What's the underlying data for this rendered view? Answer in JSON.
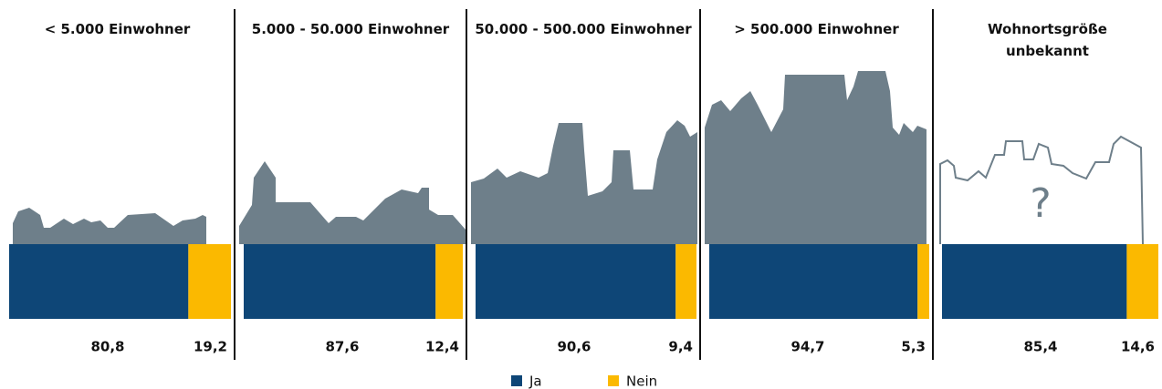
{
  "chart_data": {
    "type": "bar",
    "stacked": true,
    "orientation": "horizontal",
    "categories": [
      "< 5.000 Einwohner",
      "5.000 - 50.000 Einwohner",
      "50.000 - 500.000 Einwohner",
      "> 500.000 Einwohner",
      "Wohnortsgröße unbekannt"
    ],
    "series": [
      {
        "name": "Ja",
        "color": "#0e4677",
        "values": [
          80.8,
          87.6,
          90.6,
          94.7,
          85.4
        ],
        "value_labels": [
          "80,8",
          "87,6",
          "90,6",
          "94,7",
          "85,4"
        ]
      },
      {
        "name": "Nein",
        "color": "#fbb900",
        "values": [
          19.2,
          12.4,
          9.4,
          5.3,
          14.6
        ],
        "value_labels": [
          "19,2",
          "12,4",
          "9,4",
          "5,3",
          "14,6"
        ]
      }
    ],
    "xlim": [
      0,
      100
    ],
    "annotation": "?"
  }
}
